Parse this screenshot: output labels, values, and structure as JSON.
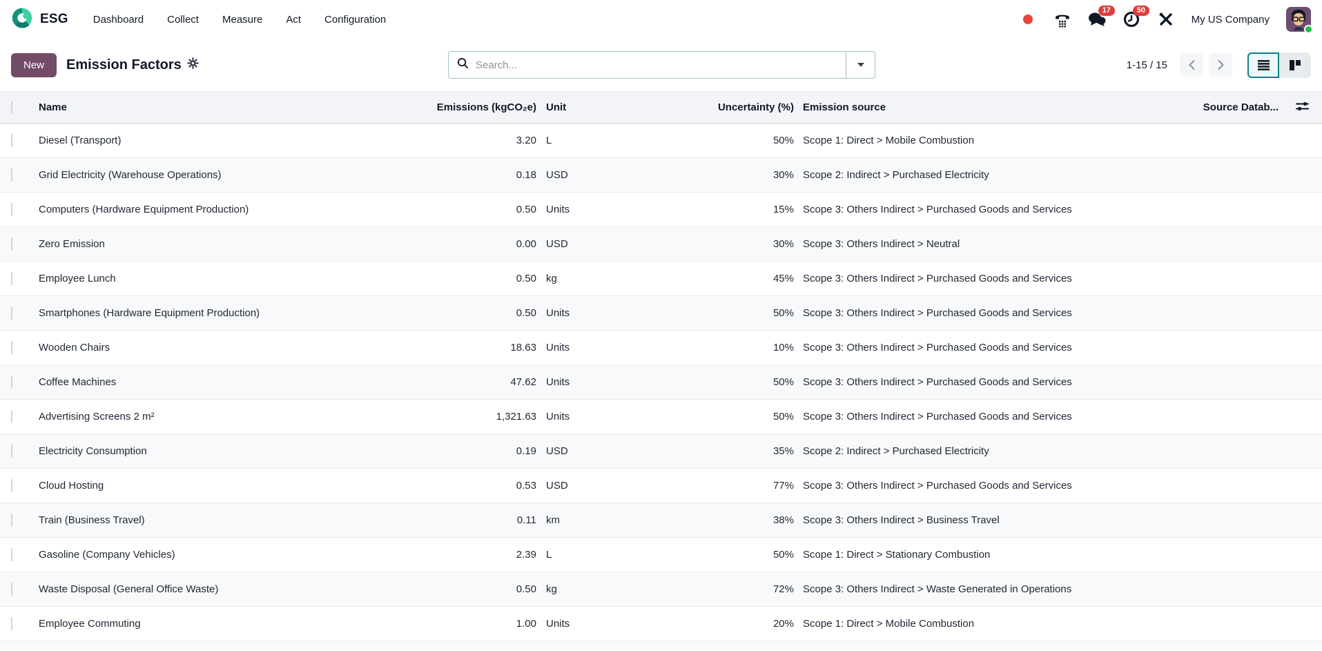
{
  "app": {
    "name": "ESG"
  },
  "nav": {
    "items": [
      {
        "label": "Dashboard"
      },
      {
        "label": "Collect"
      },
      {
        "label": "Measure"
      },
      {
        "label": "Act"
      },
      {
        "label": "Configuration"
      }
    ]
  },
  "systray": {
    "chat_badge": "17",
    "activity_badge": "50",
    "company": "My US Company"
  },
  "control": {
    "new_label": "New",
    "title": "Emission Factors",
    "search_placeholder": "Search...",
    "pager": "1-15 / 15"
  },
  "table": {
    "columns": {
      "name": "Name",
      "emissions": "Emissions (kgCO₂e)",
      "unit": "Unit",
      "uncertainty": "Uncertainty (%)",
      "source": "Emission source",
      "source_db": "Source Datab..."
    },
    "rows": [
      {
        "name": "Diesel (Transport)",
        "emissions": "3.20",
        "unit": "L",
        "uncertainty": "50%",
        "source": "Scope 1: Direct > Mobile Combustion",
        "source_db": ""
      },
      {
        "name": "Grid Electricity (Warehouse Operations)",
        "emissions": "0.18",
        "unit": "USD",
        "uncertainty": "30%",
        "source": "Scope 2: Indirect > Purchased Electricity",
        "source_db": ""
      },
      {
        "name": "Computers (Hardware Equipment Production)",
        "emissions": "0.50",
        "unit": "Units",
        "uncertainty": "15%",
        "source": "Scope 3: Others Indirect > Purchased Goods and Services",
        "source_db": ""
      },
      {
        "name": "Zero Emission",
        "emissions": "0.00",
        "unit": "USD",
        "uncertainty": "30%",
        "source": "Scope 3: Others Indirect > Neutral",
        "source_db": ""
      },
      {
        "name": "Employee Lunch",
        "emissions": "0.50",
        "unit": "kg",
        "uncertainty": "45%",
        "source": "Scope 3: Others Indirect > Purchased Goods and Services",
        "source_db": ""
      },
      {
        "name": "Smartphones (Hardware Equipment Production)",
        "emissions": "0.50",
        "unit": "Units",
        "uncertainty": "50%",
        "source": "Scope 3: Others Indirect > Purchased Goods and Services",
        "source_db": ""
      },
      {
        "name": "Wooden Chairs",
        "emissions": "18.63",
        "unit": "Units",
        "uncertainty": "10%",
        "source": "Scope 3: Others Indirect > Purchased Goods and Services",
        "source_db": ""
      },
      {
        "name": "Coffee Machines",
        "emissions": "47.62",
        "unit": "Units",
        "uncertainty": "50%",
        "source": "Scope 3: Others Indirect > Purchased Goods and Services",
        "source_db": ""
      },
      {
        "name": "Advertising Screens 2 m²",
        "emissions": "1,321.63",
        "unit": "Units",
        "uncertainty": "50%",
        "source": "Scope 3: Others Indirect > Purchased Goods and Services",
        "source_db": ""
      },
      {
        "name": "Electricity Consumption",
        "emissions": "0.19",
        "unit": "USD",
        "uncertainty": "35%",
        "source": "Scope 2: Indirect > Purchased Electricity",
        "source_db": ""
      },
      {
        "name": "Cloud Hosting",
        "emissions": "0.53",
        "unit": "USD",
        "uncertainty": "77%",
        "source": "Scope 3: Others Indirect > Purchased Goods and Services",
        "source_db": ""
      },
      {
        "name": "Train (Business Travel)",
        "emissions": "0.11",
        "unit": "km",
        "uncertainty": "38%",
        "source": "Scope 3: Others Indirect > Business Travel",
        "source_db": ""
      },
      {
        "name": "Gasoline (Company Vehicles)",
        "emissions": "2.39",
        "unit": "L",
        "uncertainty": "50%",
        "source": "Scope 1: Direct > Stationary Combustion",
        "source_db": ""
      },
      {
        "name": "Waste Disposal (General Office Waste)",
        "emissions": "0.50",
        "unit": "kg",
        "uncertainty": "72%",
        "source": "Scope 3: Others Indirect > Waste Generated in Operations",
        "source_db": ""
      },
      {
        "name": "Employee Commuting",
        "emissions": "1.00",
        "unit": "Units",
        "uncertainty": "20%",
        "source": "Scope 1: Direct > Mobile Combustion",
        "source_db": ""
      }
    ]
  },
  "colors": {
    "primary": "#714B67",
    "accent_teal": "#017e84",
    "badge_red": "#e03d3d",
    "record_red": "#e8463c",
    "logo_light": "#3ecfa3",
    "logo_dark": "#14917e",
    "presence_green": "#1fbf4e"
  }
}
